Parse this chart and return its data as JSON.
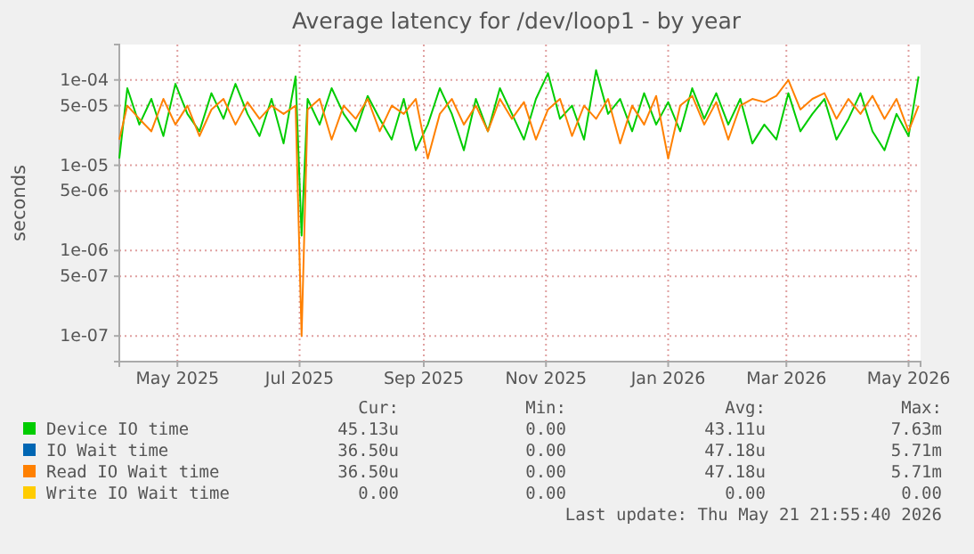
{
  "chart_data": {
    "type": "line",
    "title": "Average latency for /dev/loop1 - by year",
    "ylabel": "seconds",
    "log": true,
    "grid": true,
    "legend": "bottom",
    "marker": "none",
    "line_style": "solid",
    "xlim": [
      "2025-04-02",
      "2026-05-07"
    ],
    "xticks": [
      {
        "value": "2025-05-01",
        "label": "May 2025"
      },
      {
        "value": "2025-07-01",
        "label": "Jul 2025"
      },
      {
        "value": "2025-09-01",
        "label": "Sep 2025"
      },
      {
        "value": "2025-11-01",
        "label": "Nov 2025"
      },
      {
        "value": "2026-01-01",
        "label": "Jan 2026"
      },
      {
        "value": "2026-03-01",
        "label": "Mar 2026"
      },
      {
        "value": "2026-05-01",
        "label": "May 2026"
      }
    ],
    "ylim": [
      5e-08,
      0.00026
    ],
    "yticks": [
      {
        "value": 1e-07,
        "label": "1e-07"
      },
      {
        "value": 5e-07,
        "label": "5e-07"
      },
      {
        "value": 1e-06,
        "label": "1e-06"
      },
      {
        "value": 5e-06,
        "label": "5e-06"
      },
      {
        "value": 1e-05,
        "label": "1e-05"
      },
      {
        "value": 5e-05,
        "label": "5e-05"
      },
      {
        "value": 0.0001,
        "label": "1e-04"
      }
    ],
    "x": [
      "2025-04-02",
      "2025-04-06",
      "2025-04-12",
      "2025-04-18",
      "2025-04-24",
      "2025-04-30",
      "2025-05-06",
      "2025-05-12",
      "2025-05-18",
      "2025-05-24",
      "2025-05-30",
      "2025-06-05",
      "2025-06-11",
      "2025-06-17",
      "2025-06-23",
      "2025-06-29",
      "2025-07-02",
      "2025-07-05",
      "2025-07-11",
      "2025-07-17",
      "2025-07-23",
      "2025-07-29",
      "2025-08-04",
      "2025-08-10",
      "2025-08-16",
      "2025-08-22",
      "2025-08-28",
      "2025-09-03",
      "2025-09-09",
      "2025-09-15",
      "2025-09-21",
      "2025-09-27",
      "2025-10-03",
      "2025-10-09",
      "2025-10-15",
      "2025-10-21",
      "2025-10-27",
      "2025-11-02",
      "2025-11-08",
      "2025-11-14",
      "2025-11-20",
      "2025-11-26",
      "2025-12-02",
      "2025-12-08",
      "2025-12-14",
      "2025-12-20",
      "2025-12-26",
      "2026-01-01",
      "2026-01-07",
      "2026-01-13",
      "2026-01-19",
      "2026-01-25",
      "2026-01-31",
      "2026-02-06",
      "2026-02-12",
      "2026-02-18",
      "2026-02-24",
      "2026-03-02",
      "2026-03-08",
      "2026-03-14",
      "2026-03-20",
      "2026-03-26",
      "2026-04-01",
      "2026-04-07",
      "2026-04-13",
      "2026-04-19",
      "2026-04-25",
      "2026-05-01",
      "2026-05-06"
    ],
    "series": [
      {
        "name": "Device IO time",
        "color": "#00cc00",
        "values": [
          1.2e-05,
          8e-05,
          3e-05,
          6e-05,
          2.2e-05,
          9e-05,
          4e-05,
          2.5e-05,
          7e-05,
          3.5e-05,
          9e-05,
          4e-05,
          2.2e-05,
          6e-05,
          1.8e-05,
          0.00011,
          1.5e-06,
          6e-05,
          3e-05,
          8e-05,
          4e-05,
          2.5e-05,
          6.5e-05,
          3.5e-05,
          2e-05,
          6e-05,
          1.5e-05,
          3e-05,
          8e-05,
          4e-05,
          1.5e-05,
          6e-05,
          2.5e-05,
          8e-05,
          4e-05,
          2e-05,
          6e-05,
          0.00012,
          3.5e-05,
          5e-05,
          2e-05,
          0.00013,
          4e-05,
          6e-05,
          2.5e-05,
          7e-05,
          3e-05,
          5.5e-05,
          2.5e-05,
          8e-05,
          3.5e-05,
          7e-05,
          3e-05,
          6e-05,
          1.8e-05,
          3e-05,
          2e-05,
          7e-05,
          2.5e-05,
          4e-05,
          6e-05,
          2e-05,
          3.5e-05,
          7e-05,
          2.5e-05,
          1.5e-05,
          4e-05,
          2.2e-05,
          0.00011
        ]
      },
      {
        "name": "IO Wait time",
        "color": "#0066b3",
        "values": [
          null,
          null,
          null,
          null,
          null,
          null,
          null,
          null,
          null,
          null,
          null,
          null,
          null,
          null,
          null,
          null,
          null,
          null,
          null,
          null,
          null,
          null,
          null,
          null,
          null,
          null,
          null,
          null,
          null,
          null,
          null,
          null,
          null,
          null,
          null,
          null,
          null,
          null,
          null,
          null,
          null,
          null,
          null,
          null,
          null,
          null,
          null,
          null,
          null,
          null,
          null,
          null,
          null,
          null,
          null,
          null,
          null,
          null,
          null,
          null,
          null,
          null,
          null,
          null,
          null,
          null,
          null,
          null,
          null
        ]
      },
      {
        "name": "Read IO Wait time",
        "color": "#ff8000",
        "values": [
          2e-05,
          5e-05,
          3.5e-05,
          2.5e-05,
          6e-05,
          3e-05,
          5e-05,
          2.2e-05,
          4.5e-05,
          6e-05,
          3e-05,
          5.5e-05,
          3.5e-05,
          5e-05,
          4e-05,
          5e-05,
          1e-07,
          4.5e-05,
          6e-05,
          2e-05,
          5e-05,
          3.5e-05,
          6e-05,
          2.5e-05,
          5e-05,
          4e-05,
          6e-05,
          1.2e-05,
          4e-05,
          6e-05,
          3e-05,
          5e-05,
          2.5e-05,
          6e-05,
          3.5e-05,
          5.5e-05,
          2e-05,
          4.5e-05,
          6e-05,
          2.2e-05,
          5e-05,
          3.5e-05,
          6e-05,
          1.8e-05,
          5e-05,
          3e-05,
          6.5e-05,
          1.2e-05,
          5e-05,
          6.5e-05,
          3e-05,
          5.5e-05,
          2e-05,
          5e-05,
          6e-05,
          5.5e-05,
          6.5e-05,
          0.0001,
          4.5e-05,
          6e-05,
          7e-05,
          3.5e-05,
          6e-05,
          4e-05,
          6.5e-05,
          3.5e-05,
          6e-05,
          2.5e-05,
          5e-05
        ]
      },
      {
        "name": "Write IO Wait time",
        "color": "#ffcc00",
        "values": [
          null,
          null,
          null,
          null,
          null,
          null,
          null,
          null,
          null,
          null,
          null,
          null,
          null,
          null,
          null,
          null,
          null,
          null,
          null,
          null,
          null,
          null,
          null,
          null,
          null,
          null,
          null,
          null,
          null,
          null,
          null,
          null,
          null,
          null,
          null,
          null,
          null,
          null,
          null,
          null,
          null,
          null,
          null,
          null,
          null,
          null,
          null,
          null,
          null,
          null,
          null,
          null,
          null,
          null,
          null,
          null,
          null,
          null,
          null,
          null,
          null,
          null,
          null,
          null,
          null,
          null,
          null,
          null,
          null
        ]
      }
    ],
    "annotations": [
      "Cur:",
      "Min:",
      "Avg:",
      "Max:",
      "45.13u",
      "0.00",
      "43.11u",
      "7.63m",
      "36.50u",
      "0.00",
      "47.18u",
      "5.71m",
      "36.50u",
      "0.00",
      "47.18u",
      "5.71m",
      "0.00",
      "0.00",
      "0.00",
      "0.00",
      "Last update: Thu May 21 21:55:40 2026"
    ]
  }
}
